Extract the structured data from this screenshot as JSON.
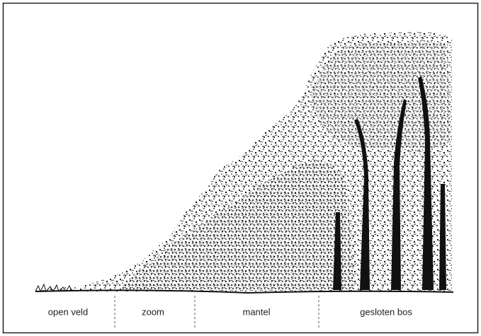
{
  "zones": [
    {
      "label": "open veld"
    },
    {
      "label": "zoom"
    },
    {
      "label": "mantel"
    },
    {
      "label": "gesloten bos"
    }
  ]
}
